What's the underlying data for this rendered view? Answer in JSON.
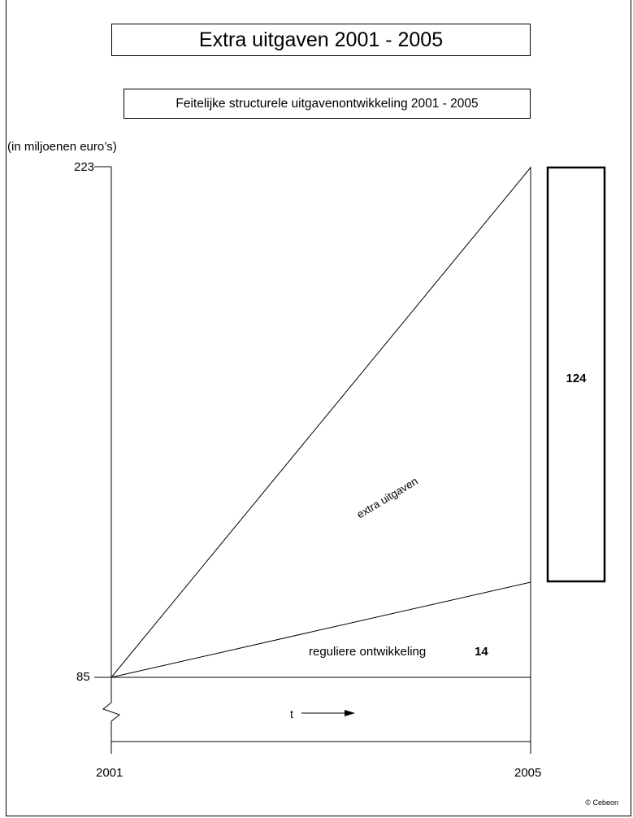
{
  "title": "Extra uitgaven 2001 - 2005",
  "subtitle": "Feitelijke structurele uitgavenontwikkeling 2001 - 2005",
  "unit_label": "(in miljoenen euro’s)",
  "y_axis": {
    "top_label": "223",
    "bottom_label": "85"
  },
  "x_axis": {
    "start_label": "2001",
    "end_label": "2005",
    "time_label": "t"
  },
  "regions": {
    "extra_label": "extra uitgaven",
    "regular_label": "reguliere ontwikkeling",
    "regular_value": "14"
  },
  "side_box": {
    "value": "124"
  },
  "copyright": "© Cebeon"
}
